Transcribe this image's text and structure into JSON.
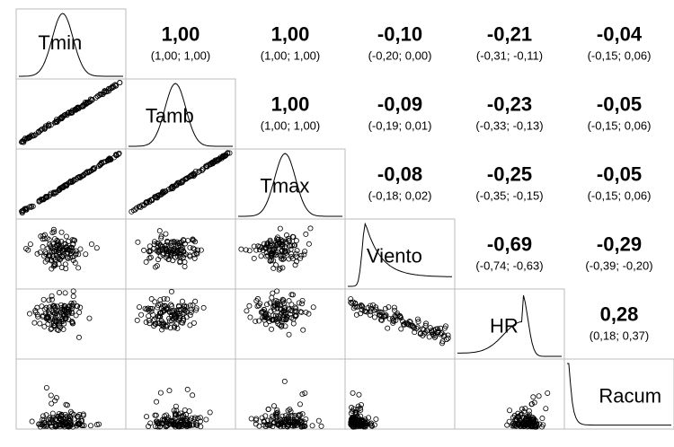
{
  "variables": [
    "Tmin",
    "Tamb",
    "Tmax",
    "Viento",
    "HR",
    "Racum"
  ],
  "correlations": [
    [
      {
        "r": "1,00",
        "ci": "(1,00; 1,00)"
      },
      {
        "r": "1,00",
        "ci": "(1,00; 1,00)"
      },
      {
        "r": "-0,10",
        "ci": "(-0,20; 0,00)"
      },
      {
        "r": "-0,21",
        "ci": "(-0,31; -0,11)"
      },
      {
        "r": "-0,04",
        "ci": "(-0,15; 0,06)"
      }
    ],
    [
      {
        "r": "1,00",
        "ci": "(1,00; 1,00)"
      },
      {
        "r": "-0,09",
        "ci": "(-0,19; 0,01)"
      },
      {
        "r": "-0,23",
        "ci": "(-0,33; -0,13)"
      },
      {
        "r": "-0,05",
        "ci": "(-0,15; 0,06)"
      }
    ],
    [
      {
        "r": "-0,08",
        "ci": "(-0,18; 0,02)"
      },
      {
        "r": "-0,25",
        "ci": "(-0,35; -0,15)"
      },
      {
        "r": "-0,05",
        "ci": "(-0,15; 0,06)"
      }
    ],
    [
      {
        "r": "-0,69",
        "ci": "(-0,74; -0,63)"
      },
      {
        "r": "-0,29",
        "ci": "(-0,39; -0,20)"
      }
    ],
    [
      {
        "r": "0,28",
        "ci": "(0,18; 0,37)"
      }
    ]
  ]
}
